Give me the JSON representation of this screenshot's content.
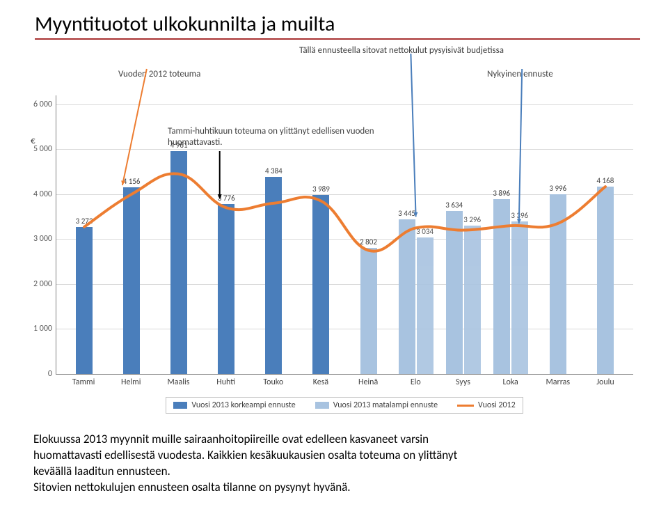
{
  "title": "Myyntituotot ulkokunnilta ja muilta",
  "annotations": {
    "top_right": "Tällä ennusteella sitovat nettokulut pysyisivät budjetissa",
    "vuoden_2012": "Vuoden 2012 toteuma",
    "nykyinen": "Nykyinen ennuste",
    "tammi_huhti_1": "Tammi-huhtikuun toteuma on ylittänyt edellisen vuoden",
    "tammi_huhti_2": "huomattavasti."
  },
  "chart": {
    "type": "grouped-bar-with-line",
    "categories": [
      "Tammi",
      "Helmi",
      "Maalis",
      "Huhti",
      "Touko",
      "Kesä",
      "Heinä",
      "Elo",
      "Syys",
      "Loka",
      "Marras",
      "Joulu"
    ],
    "bars_high": [
      3273,
      4156,
      4961,
      3776,
      4384,
      3989,
      null,
      null,
      null,
      null,
      null,
      null
    ],
    "bars_low": [
      null,
      null,
      null,
      null,
      null,
      null,
      2802,
      3445,
      3634,
      3896,
      3996,
      4168
    ],
    "bar_labels": [
      3273,
      4156,
      4961,
      3776,
      4384,
      3989,
      2802,
      3445,
      3634,
      3896,
      3996,
      4168
    ],
    "alt_low": [
      null,
      null,
      null,
      null,
      null,
      null,
      null,
      3034,
      3296,
      3396,
      null,
      null
    ],
    "line_2012": [
      3273,
      4000,
      4450,
      3700,
      3800,
      3850,
      2750,
      3250,
      3200,
      3300,
      3350,
      4168
    ],
    "ymax": 6200,
    "yticks": [
      0,
      1000,
      2000,
      3000,
      4000,
      5000,
      6000
    ],
    "ylabel": "€",
    "colors": {
      "bar_high": "#4a7ebb",
      "bar_low": "#a8c3e0",
      "line": "#ed7d31",
      "grid": "#d9d9d9",
      "axis": "#808080"
    },
    "legend": {
      "high": "Vuosi 2013 korkeampi ennuste",
      "low": "Vuosi 2013 matalampi ennuste",
      "line": "Vuosi 2012"
    },
    "arrows": {
      "color_orange": "#ed7d31",
      "color_black": "#000000",
      "color_blue": "#4a7ebb"
    }
  },
  "caption_lines": [
    "Elokuussa 2013 myynnit muille sairaanhoitopiireille ovat edelleen kasvaneet varsin",
    "huomattavasti edellisestä vuodesta. Kaikkien kesäkuukausien osalta toteuma on ylittänyt",
    "keväällä laaditun ennusteen.",
    "Sitovien nettokulujen ennusteen osalta tilanne on pysynyt hyvänä."
  ]
}
